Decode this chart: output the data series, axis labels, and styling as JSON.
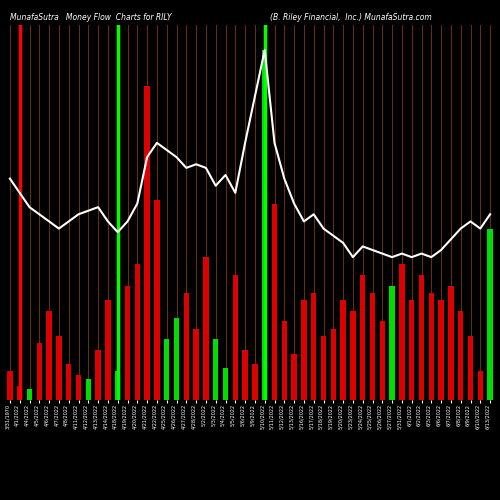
{
  "title_left": "MunafaSutra   Money Flow  Charts for RILY",
  "title_right": "(B. Riley Financial,  Inc.) MunafaSutra.com",
  "background_color": "#000000",
  "bar_colors_pattern": [
    "red",
    "red",
    "green",
    "red",
    "red",
    "red",
    "red",
    "red",
    "green",
    "red",
    "red",
    "green",
    "red",
    "red",
    "red",
    "red",
    "green",
    "green",
    "red",
    "red",
    "red",
    "green",
    "green",
    "red",
    "red",
    "red",
    "green",
    "red",
    "red",
    "red",
    "red",
    "red",
    "red",
    "red",
    "red",
    "red",
    "red",
    "red",
    "red",
    "green",
    "red",
    "red",
    "red",
    "red",
    "red",
    "red",
    "red",
    "red",
    "red",
    "green"
  ],
  "line_color": "#ffffff",
  "bar_heights": [
    0.08,
    0.04,
    0.03,
    0.16,
    0.25,
    0.18,
    0.1,
    0.07,
    0.06,
    0.14,
    0.28,
    0.08,
    0.32,
    0.38,
    0.88,
    0.56,
    0.17,
    0.23,
    0.3,
    0.2,
    0.4,
    0.17,
    0.09,
    0.35,
    0.14,
    0.1,
    0.98,
    0.55,
    0.22,
    0.13,
    0.28,
    0.3,
    0.18,
    0.2,
    0.28,
    0.25,
    0.35,
    0.3,
    0.22,
    0.32,
    0.38,
    0.28,
    0.35,
    0.3,
    0.28,
    0.32,
    0.25,
    0.18,
    0.08,
    0.48
  ],
  "line_values": [
    0.62,
    0.58,
    0.54,
    0.52,
    0.5,
    0.48,
    0.5,
    0.52,
    0.53,
    0.54,
    0.5,
    0.47,
    0.5,
    0.55,
    0.68,
    0.72,
    0.7,
    0.68,
    0.65,
    0.66,
    0.65,
    0.6,
    0.63,
    0.58,
    0.72,
    0.85,
    0.98,
    0.72,
    0.62,
    0.55,
    0.5,
    0.52,
    0.48,
    0.46,
    0.44,
    0.4,
    0.43,
    0.42,
    0.41,
    0.4,
    0.41,
    0.4,
    0.41,
    0.4,
    0.42,
    0.45,
    0.48,
    0.5,
    0.48,
    0.52
  ],
  "x_labels": [
    "3/31/1970",
    "4/1/2022",
    "4/4/2022",
    "4/5/2022",
    "4/6/2022",
    "4/7/2022",
    "4/8/2022",
    "4/11/2022",
    "4/12/2022",
    "4/13/2022",
    "4/14/2022",
    "4/18/2022",
    "4/19/2022",
    "4/20/2022",
    "4/21/2022",
    "4/22/2022",
    "4/25/2022",
    "4/26/2022",
    "4/27/2022",
    "4/28/2022",
    "5/2/2022",
    "5/3/2022",
    "5/4/2022",
    "5/5/2022",
    "5/6/2022",
    "5/9/2022",
    "5/10/2022",
    "5/11/2022",
    "5/12/2022",
    "5/13/2022",
    "5/16/2022",
    "5/17/2022",
    "5/18/2022",
    "5/19/2022",
    "5/20/2022",
    "5/23/2022",
    "5/24/2022",
    "5/25/2022",
    "5/26/2022",
    "5/27/2022",
    "5/31/2022",
    "6/1/2022",
    "6/2/2022",
    "6/3/2022",
    "6/6/2022",
    "6/7/2022",
    "6/8/2022",
    "6/9/2022",
    "6/10/2022",
    "6/13/2022"
  ],
  "special_red_vlines": [
    1
  ],
  "special_green_vlines": [
    11,
    26
  ],
  "orange_vline_color": "#7a3800",
  "ylim": [
    0,
    1.05
  ]
}
